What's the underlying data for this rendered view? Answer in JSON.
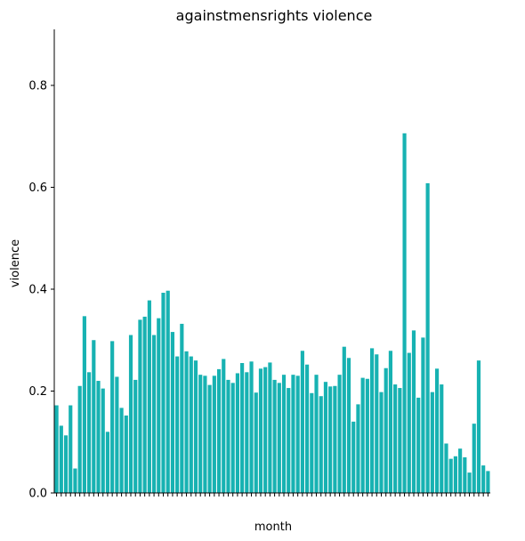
{
  "chart_data": {
    "type": "bar",
    "title": "againstmensrights violence",
    "xlabel": "month",
    "ylabel": "violence",
    "ylim": [
      0,
      0.91
    ],
    "yticks": [
      0.0,
      0.2,
      0.4,
      0.6,
      0.8
    ],
    "ytick_labels": [
      "0.0",
      "0.2",
      "0.4",
      "0.6",
      "0.8"
    ],
    "bar_color": "#17b2b2",
    "x_tick_labels_note": "month labels overlap and are illegible",
    "values": [
      0.172,
      0.132,
      0.113,
      0.172,
      0.048,
      0.21,
      0.347,
      0.237,
      0.3,
      0.22,
      0.205,
      0.12,
      0.298,
      0.228,
      0.167,
      0.152,
      0.31,
      0.222,
      0.34,
      0.346,
      0.378,
      0.31,
      0.343,
      0.393,
      0.397,
      0.316,
      0.268,
      0.332,
      0.278,
      0.268,
      0.26,
      0.232,
      0.23,
      0.212,
      0.23,
      0.243,
      0.263,
      0.222,
      0.216,
      0.235,
      0.255,
      0.237,
      0.258,
      0.197,
      0.244,
      0.247,
      0.256,
      0.222,
      0.216,
      0.232,
      0.206,
      0.232,
      0.23,
      0.279,
      0.252,
      0.196,
      0.232,
      0.19,
      0.218,
      0.209,
      0.21,
      0.232,
      0.287,
      0.265,
      0.14,
      0.174,
      0.226,
      0.224,
      0.284,
      0.272,
      0.198,
      0.245,
      0.279,
      0.213,
      0.206,
      0.706,
      0.275,
      0.319,
      0.187,
      0.305,
      0.608,
      0.198,
      0.244,
      0.213,
      0.097,
      0.067,
      0.072,
      0.087,
      0.07,
      0.04,
      0.136,
      0.26,
      0.054,
      0.043
    ]
  }
}
